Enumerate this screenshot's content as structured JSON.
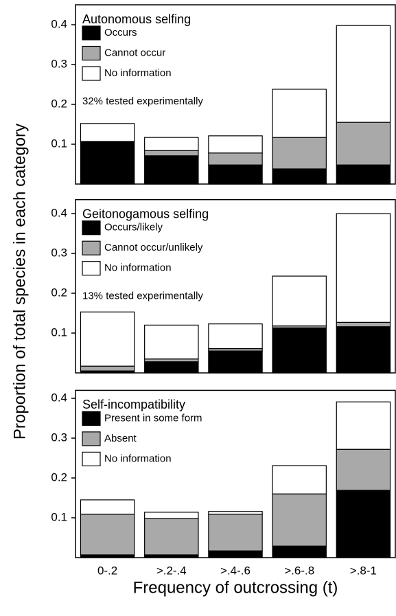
{
  "chart_data": [
    {
      "type": "bar",
      "stacked": true,
      "title": "Autonomous selfing",
      "annotation": "32% tested experimentally",
      "ylabel": "Proportion of total species in each category",
      "ylim": [
        0,
        0.45
      ],
      "yticks": [
        0.1,
        0.2,
        0.3,
        0.4
      ],
      "series": [
        {
          "name": "Occurs",
          "color": "#000000",
          "values": [
            0.107,
            0.071,
            0.048,
            0.038,
            0.048
          ]
        },
        {
          "name": "Cannot occur",
          "color": "#a9a9a9",
          "values": [
            0,
            0.013,
            0.03,
            0.079,
            0.107
          ]
        },
        {
          "name": "No information",
          "color": "#ffffff",
          "values": [
            0.045,
            0.033,
            0.043,
            0.121,
            0.243
          ]
        }
      ]
    },
    {
      "type": "bar",
      "stacked": true,
      "title": "Geitonogamous selfing",
      "annotation": "13% tested experimentally",
      "ylim": [
        0,
        0.435
      ],
      "yticks": [
        0.1,
        0.2,
        0.3,
        0.4
      ],
      "series": [
        {
          "name": "Occurs/likely",
          "color": "#000000",
          "values": [
            0.005,
            0.028,
            0.055,
            0.113,
            0.116
          ]
        },
        {
          "name": "Cannot occur/unlikely",
          "color": "#a9a9a9",
          "values": [
            0.012,
            0.007,
            0.006,
            0.005,
            0.011
          ]
        },
        {
          "name": "No information",
          "color": "#ffffff",
          "values": [
            0.136,
            0.085,
            0.062,
            0.125,
            0.273
          ]
        }
      ]
    },
    {
      "type": "bar",
      "stacked": true,
      "title": "Self-incompatibility",
      "xlabel": "Frequency of outcrossing (t)",
      "categories": [
        "0-.2",
        ">.2-.4",
        ">.4-.6",
        ">.6-.8",
        ">.8-1"
      ],
      "ylim": [
        0,
        0.42
      ],
      "yticks": [
        0.1,
        0.2,
        0.3,
        0.4
      ],
      "series": [
        {
          "name": "Present in some form",
          "color": "#000000",
          "values": [
            0.007,
            0.007,
            0.017,
            0.029,
            0.169
          ]
        },
        {
          "name": "Absent",
          "color": "#a9a9a9",
          "values": [
            0.102,
            0.091,
            0.092,
            0.131,
            0.103
          ]
        },
        {
          "name": "No information",
          "color": "#ffffff",
          "values": [
            0.036,
            0.016,
            0.007,
            0.071,
            0.119
          ]
        }
      ]
    }
  ]
}
